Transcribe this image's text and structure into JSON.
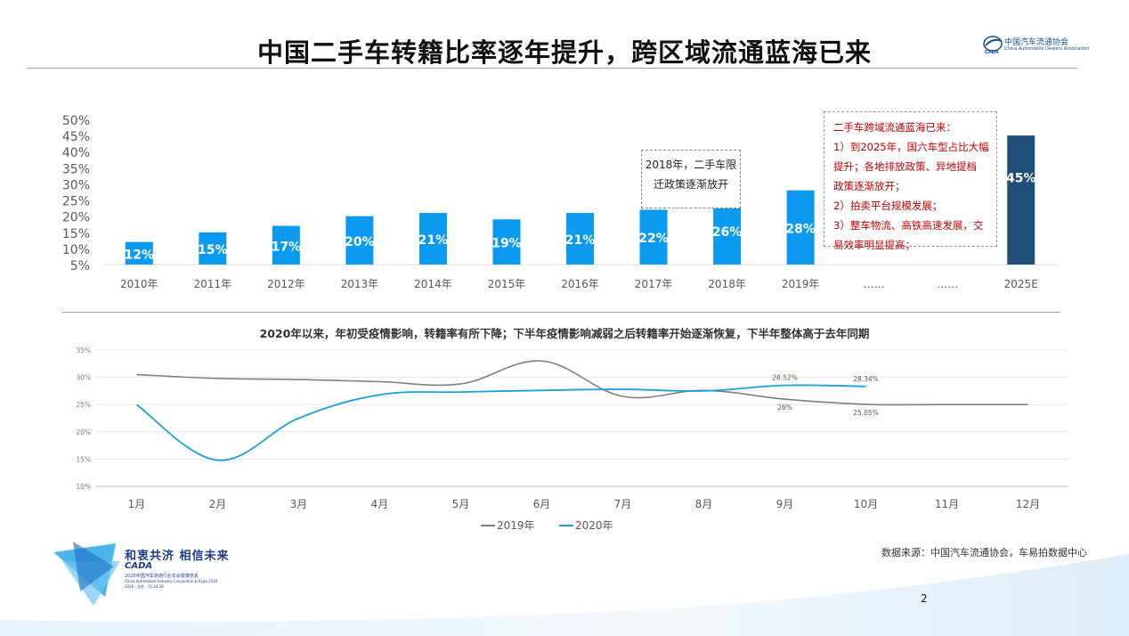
{
  "page": {
    "title": "中国二手车转籍比率逐年提升，跨区域流通蓝海已来",
    "logo_text": "中国汽车流通协会",
    "logo_sub": "China Automobile Dealers Association",
    "page_number": "2",
    "source": "数据来源：中国汽车流通协会，车易拍数据中心",
    "slogan": "和衷共济 相信未来",
    "expo": "CADA",
    "expo_sub": "2020中国汽车流通行业年会暨博览会",
    "expo_sub2": "China Automobile Industry Convention & Expo 2020",
    "expo_sub3": "2020 · 北京 · 11.24-26"
  },
  "annotations": {
    "note_2018": [
      "2018年，二手车限",
      "迁政策逐渐放开"
    ],
    "red_box": [
      "二手车跨域流通蓝海已来：",
      "1）到2025年，国六车型占比大幅",
      "提升；各地排放政策、异地提档",
      "政策逐渐放开；",
      "2）拍卖平台规模发展；",
      "3）整车物流、高铁高速发展，交",
      "易效率明显提高；"
    ]
  },
  "colors": {
    "bar": "#0a9bf0",
    "bar_forecast": "#1f4e79",
    "line_2019": "#7f7f7f",
    "line_2020": "#1ba1d8",
    "annotation_red": "#c00000"
  },
  "chart_data": [
    {
      "type": "bar",
      "categories": [
        "2010年",
        "2011年",
        "2012年",
        "2013年",
        "2014年",
        "2015年",
        "2016年",
        "2017年",
        "2018年",
        "2019年",
        "……",
        "……",
        "2025E"
      ],
      "values": [
        12,
        15,
        17,
        20,
        21,
        19,
        21,
        22,
        26,
        28,
        null,
        null,
        45
      ],
      "data_labels": [
        "12%",
        "15%",
        "17%",
        "20%",
        "21%",
        "19%",
        "21%",
        "22%",
        "26%",
        "28%",
        "",
        "",
        "45%"
      ],
      "yticks": [
        "50%",
        "45%",
        "40%",
        "35%",
        "30%",
        "25%",
        "20%",
        "15%",
        "10%",
        "5%"
      ],
      "ylim": [
        5,
        50
      ],
      "grid": false,
      "legend": "none"
    },
    {
      "type": "line",
      "title": "2020年以来，年初受疫情影响，转籍率有所下降；下半年疫情影响减弱之后转籍率开始逐渐恢复，下半年整体高于去年同期",
      "categories": [
        "1月",
        "2月",
        "3月",
        "4月",
        "5月",
        "6月",
        "7月",
        "8月",
        "9月",
        "10月",
        "11月",
        "12月"
      ],
      "yticks": [
        "35%",
        "30%",
        "25%",
        "20%",
        "15%",
        "10%"
      ],
      "ylim": [
        10,
        35
      ],
      "series": [
        {
          "name": "2019年",
          "values": [
            30.5,
            29.8,
            29.6,
            29.2,
            28.8,
            33.0,
            26.5,
            27.6,
            26.0,
            25.05,
            25.0,
            25.0
          ]
        },
        {
          "name": "2020年",
          "values": [
            25.0,
            14.8,
            22.5,
            26.8,
            27.3,
            27.6,
            27.8,
            27.5,
            28.52,
            28.34,
            null,
            null
          ]
        }
      ],
      "point_labels": [
        {
          "series": "2020年",
          "month": "9月",
          "text": "28.52%"
        },
        {
          "series": "2020年",
          "month": "10月",
          "text": "28.34%"
        },
        {
          "series": "2019年",
          "month": "9月",
          "text": "26%"
        },
        {
          "series": "2019年",
          "month": "10月",
          "text": "25.05%"
        }
      ],
      "grid": true,
      "legend": "bottom-center"
    }
  ]
}
